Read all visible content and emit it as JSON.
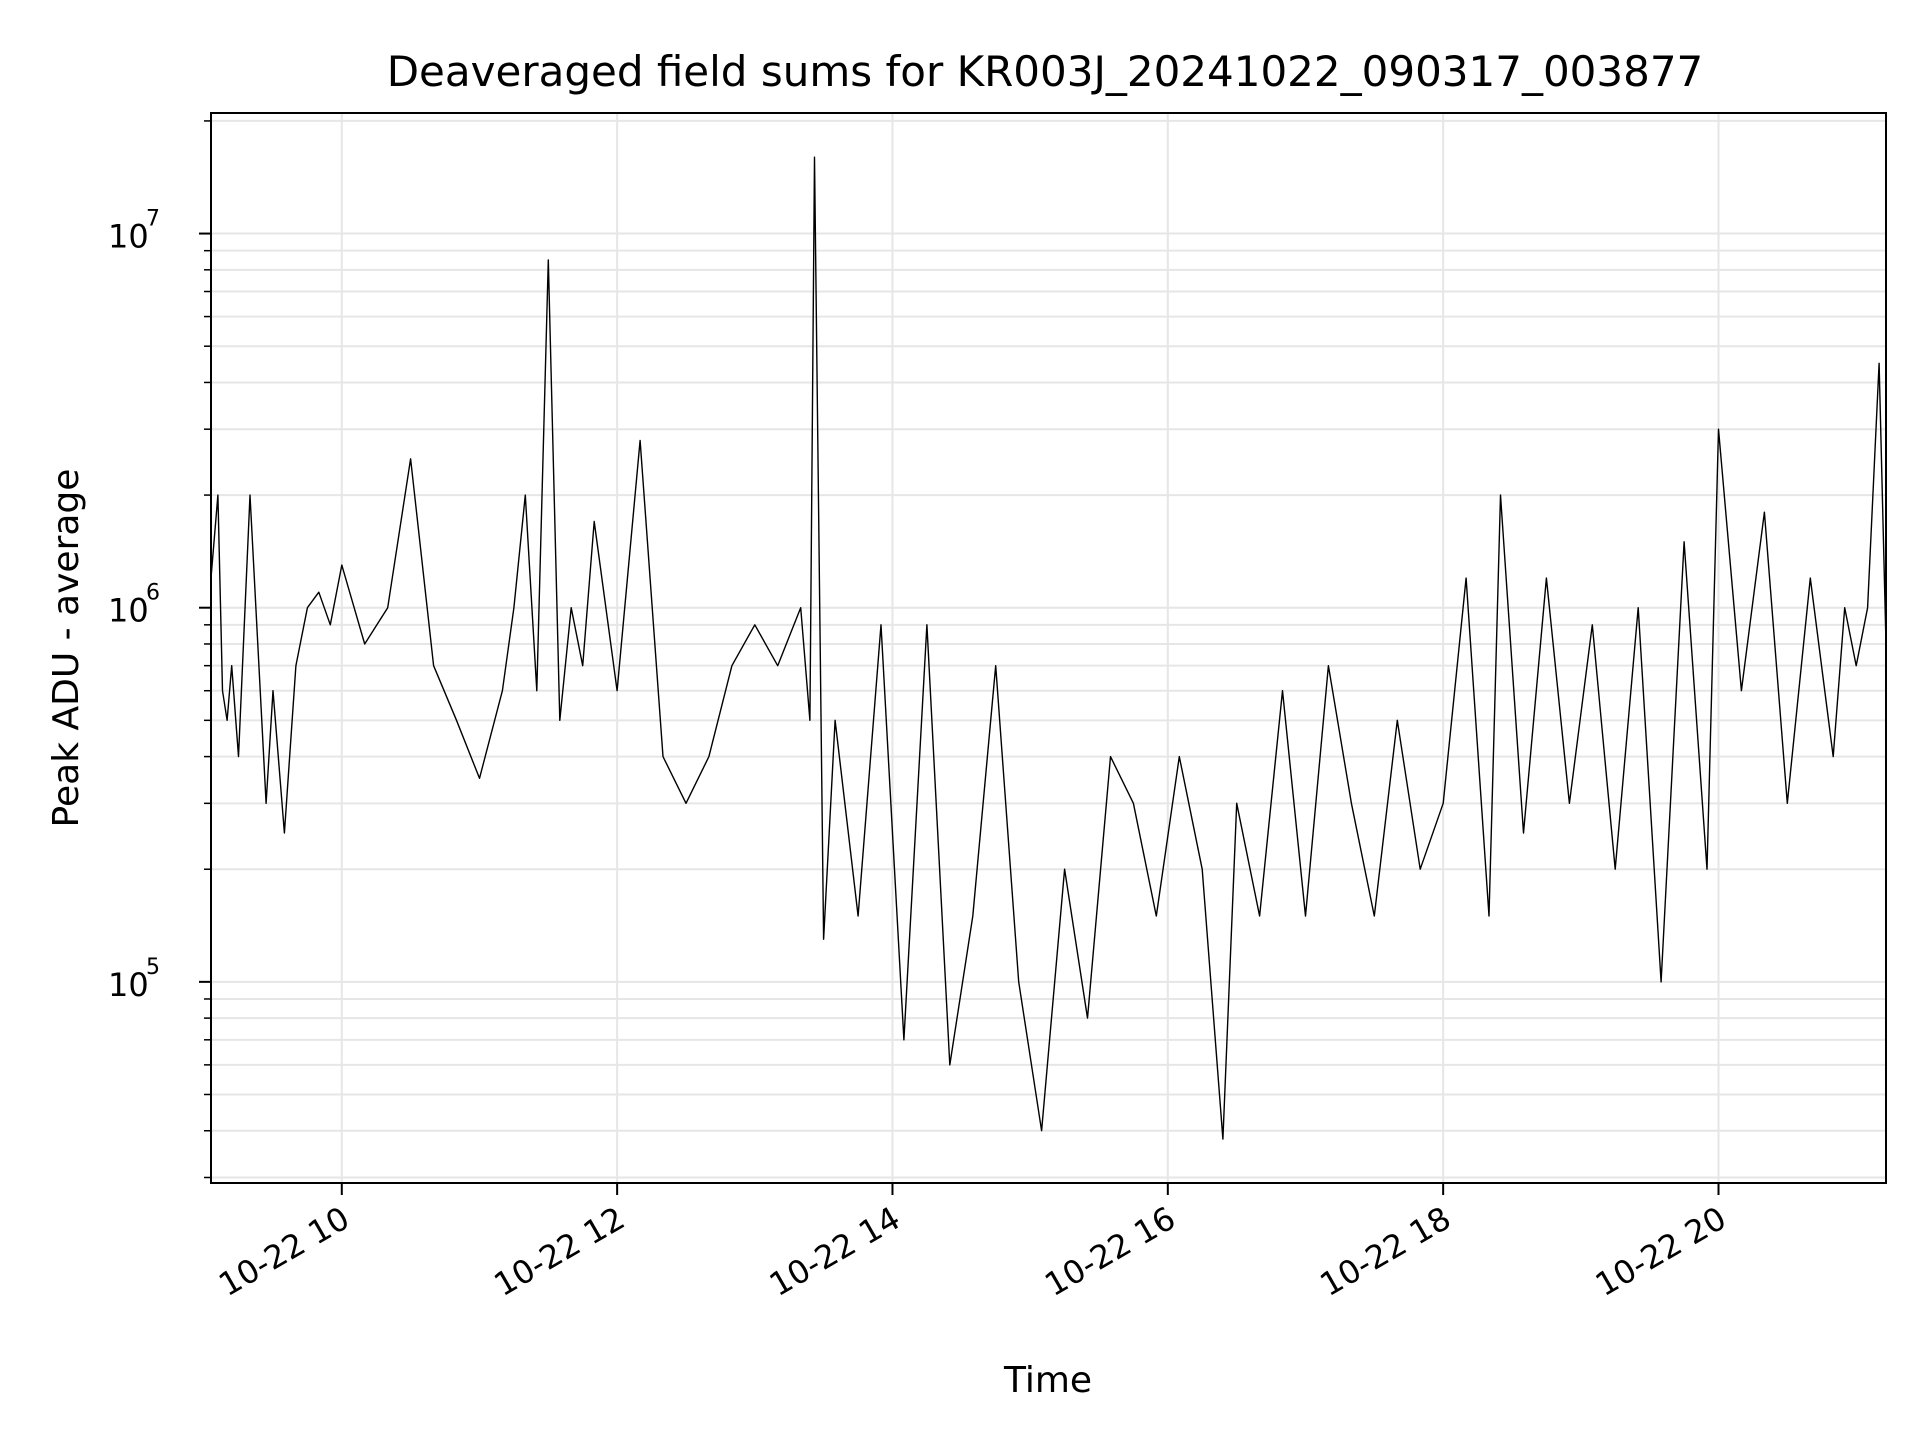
{
  "chart_data": {
    "type": "line",
    "title": "Deaveraged field sums for KR003J_20241022_090317_003877",
    "xlabel": "Time",
    "ylabel": "Peak ADU - average",
    "yscale": "log",
    "xlim": [
      "2024-10-22T09:03",
      "2024-10-22T21:13"
    ],
    "ylim": [
      29000,
      21000000
    ],
    "grid": true,
    "line_color": "#000000",
    "grid_color": "#e6e6e6",
    "x_ticks": [
      {
        "label": "10-22 10",
        "value": "2024-10-22T10:00"
      },
      {
        "label": "10-22 12",
        "value": "2024-10-22T12:00"
      },
      {
        "label": "10-22 14",
        "value": "2024-10-22T14:00"
      },
      {
        "label": "10-22 16",
        "value": "2024-10-22T16:00"
      },
      {
        "label": "10-22 18",
        "value": "2024-10-22T18:00"
      },
      {
        "label": "10-22 20",
        "value": "2024-10-22T20:00"
      }
    ],
    "y_ticks": [
      {
        "base": "10",
        "exp": "5",
        "value": 100000
      },
      {
        "base": "10",
        "exp": "6",
        "value": 1000000
      },
      {
        "base": "10",
        "exp": "7",
        "value": 10000000
      }
    ],
    "series": [
      {
        "x": [
          "2024-10-22T09:03",
          "2024-10-22T09:06",
          "2024-10-22T09:08",
          "2024-10-22T09:10",
          "2024-10-22T09:12",
          "2024-10-22T09:15",
          "2024-10-22T09:20",
          "2024-10-22T09:27",
          "2024-10-22T09:30",
          "2024-10-22T09:35",
          "2024-10-22T09:40",
          "2024-10-22T09:45",
          "2024-10-22T09:50",
          "2024-10-22T09:55",
          "2024-10-22T10:00",
          "2024-10-22T10:10",
          "2024-10-22T10:20",
          "2024-10-22T10:30",
          "2024-10-22T10:40",
          "2024-10-22T10:50",
          "2024-10-22T11:00",
          "2024-10-22T11:10",
          "2024-10-22T11:15",
          "2024-10-22T11:20",
          "2024-10-22T11:25",
          "2024-10-22T11:30",
          "2024-10-22T11:35",
          "2024-10-22T11:40",
          "2024-10-22T11:45",
          "2024-10-22T11:50",
          "2024-10-22T12:00",
          "2024-10-22T12:10",
          "2024-10-22T12:20",
          "2024-10-22T12:30",
          "2024-10-22T12:40",
          "2024-10-22T12:50",
          "2024-10-22T13:00",
          "2024-10-22T13:10",
          "2024-10-22T13:20",
          "2024-10-22T13:24",
          "2024-10-22T13:26",
          "2024-10-22T13:30",
          "2024-10-22T13:35",
          "2024-10-22T13:45",
          "2024-10-22T13:55",
          "2024-10-22T14:05",
          "2024-10-22T14:15",
          "2024-10-22T14:25",
          "2024-10-22T14:35",
          "2024-10-22T14:45",
          "2024-10-22T14:55",
          "2024-10-22T15:05",
          "2024-10-22T15:15",
          "2024-10-22T15:25",
          "2024-10-22T15:35",
          "2024-10-22T15:45",
          "2024-10-22T15:55",
          "2024-10-22T16:05",
          "2024-10-22T16:15",
          "2024-10-22T16:24",
          "2024-10-22T16:30",
          "2024-10-22T16:40",
          "2024-10-22T16:50",
          "2024-10-22T17:00",
          "2024-10-22T17:10",
          "2024-10-22T17:20",
          "2024-10-22T17:30",
          "2024-10-22T17:40",
          "2024-10-22T17:50",
          "2024-10-22T18:00",
          "2024-10-22T18:10",
          "2024-10-22T18:20",
          "2024-10-22T18:25",
          "2024-10-22T18:35",
          "2024-10-22T18:45",
          "2024-10-22T18:55",
          "2024-10-22T19:05",
          "2024-10-22T19:15",
          "2024-10-22T19:25",
          "2024-10-22T19:35",
          "2024-10-22T19:45",
          "2024-10-22T19:55",
          "2024-10-22T20:00",
          "2024-10-22T20:10",
          "2024-10-22T20:20",
          "2024-10-22T20:30",
          "2024-10-22T20:40",
          "2024-10-22T20:50",
          "2024-10-22T20:55",
          "2024-10-22T21:00",
          "2024-10-22T21:05",
          "2024-10-22T21:10",
          "2024-10-22T21:13"
        ],
        "y": [
          1200000,
          2000000,
          600000,
          500000,
          700000,
          400000,
          2000000,
          300000,
          600000,
          250000,
          700000,
          1000000,
          1100000,
          900000,
          1300000,
          800000,
          1000000,
          2500000,
          700000,
          500000,
          350000,
          600000,
          1000000,
          2000000,
          600000,
          8500000,
          500000,
          1000000,
          700000,
          1700000,
          600000,
          2800000,
          400000,
          300000,
          400000,
          700000,
          900000,
          700000,
          1000000,
          500000,
          16000000,
          130000,
          500000,
          150000,
          900000,
          70000,
          900000,
          60000,
          150000,
          700000,
          100000,
          40000,
          200000,
          80000,
          400000,
          300000,
          150000,
          400000,
          200000,
          38000,
          300000,
          150000,
          600000,
          150000,
          700000,
          300000,
          150000,
          500000,
          200000,
          300000,
          1200000,
          150000,
          2000000,
          250000,
          1200000,
          300000,
          900000,
          200000,
          1000000,
          100000,
          1500000,
          200000,
          3000000,
          600000,
          1800000,
          300000,
          1200000,
          400000,
          1000000,
          700000,
          1000000,
          4500000,
          800000
        ]
      }
    ]
  }
}
